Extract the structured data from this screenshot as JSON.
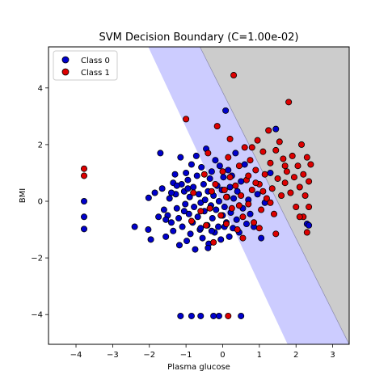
{
  "chart_data": {
    "type": "scatter",
    "title": "SVM Decision Boundary (C=1.00e-02)",
    "xlabel": "Plasma glucose",
    "ylabel": "BMI",
    "xlim": [
      -4.75,
      3.45
    ],
    "ylim": [
      -5.05,
      5.45
    ],
    "x_ticks": [
      -4,
      -3,
      -2,
      -1,
      0,
      1,
      2,
      3
    ],
    "y_ticks": [
      -4,
      -2,
      0,
      2,
      4
    ],
    "x_tick_labels": [
      "−4",
      "−3",
      "−2",
      "−1",
      "0",
      "1",
      "2",
      "3"
    ],
    "y_tick_labels": [
      "−4",
      "−2",
      "0",
      "2",
      "4"
    ],
    "grid": false,
    "legend_position": "top-left",
    "colors": {
      "class0_face": "#0000cc",
      "class1_face": "#dd0000",
      "marker_edge": "#000000",
      "region_class0": "#ccccff",
      "region_class1": "#cccccc",
      "boundary": "#8888aa"
    },
    "decision_regions": {
      "boundary_top_x": -0.62,
      "boundary_bottom_x": 3.45,
      "blue_band_top_x": -2.03,
      "blue_band_bottom_x": 1.77
    },
    "series": [
      {
        "name": "Class 0",
        "points": [
          [
            -3.78,
            0.0
          ],
          [
            -3.78,
            -0.55
          ],
          [
            -3.78,
            -0.98
          ],
          [
            -2.4,
            -0.9
          ],
          [
            -2.03,
            -1.0
          ],
          [
            -1.96,
            -1.35
          ],
          [
            -2.02,
            0.12
          ],
          [
            -1.85,
            0.3
          ],
          [
            -1.75,
            -0.55
          ],
          [
            -1.7,
            1.7
          ],
          [
            -1.65,
            0.45
          ],
          [
            -1.6,
            -0.3
          ],
          [
            -1.55,
            -1.25
          ],
          [
            -1.5,
            -0.5
          ],
          [
            -1.45,
            0.1
          ],
          [
            -1.4,
            -0.75
          ],
          [
            -1.35,
            0.65
          ],
          [
            -1.35,
            -1.05
          ],
          [
            -1.3,
            0.95
          ],
          [
            -1.28,
            0.25
          ],
          [
            -1.25,
            -0.25
          ],
          [
            -1.2,
            -0.6
          ],
          [
            -1.18,
            -1.55
          ],
          [
            -1.15,
            1.55
          ],
          [
            -1.12,
            0.6
          ],
          [
            -1.1,
            -0.9
          ],
          [
            -1.05,
            0.35
          ],
          [
            -1.02,
            -0.1
          ],
          [
            -1.0,
            1.0
          ],
          [
            -0.98,
            -1.4
          ],
          [
            -0.95,
            0.75
          ],
          [
            -0.92,
            -0.45
          ],
          [
            -0.9,
            0.15
          ],
          [
            -0.88,
            -1.15
          ],
          [
            -0.85,
            1.3
          ],
          [
            -0.82,
            -0.75
          ],
          [
            -0.8,
            0.5
          ],
          [
            -0.78,
            -0.2
          ],
          [
            -0.75,
            -1.7
          ],
          [
            -0.72,
            1.6
          ],
          [
            -0.7,
            0.9
          ],
          [
            -0.68,
            -0.55
          ],
          [
            -0.65,
            0.25
          ],
          [
            -0.62,
            -1.0
          ],
          [
            -0.6,
            -0.05
          ],
          [
            -0.58,
            1.2
          ],
          [
            -0.55,
            -1.3
          ],
          [
            -0.52,
            0.6
          ],
          [
            -0.5,
            -0.35
          ],
          [
            -0.48,
            0.05
          ],
          [
            -0.45,
            1.85
          ],
          [
            -0.42,
            -0.85
          ],
          [
            -0.4,
            0.35
          ],
          [
            -0.38,
            -1.5
          ],
          [
            -0.35,
            0.8
          ],
          [
            -0.32,
            -0.15
          ],
          [
            -0.3,
            1.05
          ],
          [
            -0.28,
            -0.6
          ],
          [
            -0.25,
            0.2
          ],
          [
            -0.22,
            -1.1
          ],
          [
            -0.2,
            1.45
          ],
          [
            -0.18,
            -0.3
          ],
          [
            -0.15,
            0.55
          ],
          [
            -0.12,
            -0.9
          ],
          [
            -0.1,
            0.0
          ],
          [
            -0.08,
            1.25
          ],
          [
            -0.05,
            -1.35
          ],
          [
            -0.02,
            0.4
          ],
          [
            0.0,
            -0.5
          ],
          [
            0.02,
            0.85
          ],
          [
            0.05,
            -0.2
          ],
          [
            0.08,
            3.2
          ],
          [
            0.1,
            -0.75
          ],
          [
            0.12,
            0.15
          ],
          [
            0.15,
            1.1
          ],
          [
            0.18,
            -1.25
          ],
          [
            0.2,
            0.5
          ],
          [
            0.22,
            -0.4
          ],
          [
            0.25,
            0.9
          ],
          [
            0.28,
            -0.95
          ],
          [
            0.3,
            0.1
          ],
          [
            0.35,
            1.7
          ],
          [
            0.38,
            -0.65
          ],
          [
            0.4,
            0.35
          ],
          [
            0.45,
            -1.1
          ],
          [
            0.5,
            0.7
          ],
          [
            0.55,
            -0.25
          ],
          [
            0.6,
            1.3
          ],
          [
            0.65,
            -0.8
          ],
          [
            0.7,
            0.05
          ],
          [
            0.75,
            -0.45
          ],
          [
            0.85,
            -0.9
          ],
          [
            0.95,
            0.25
          ],
          [
            1.05,
            -1.3
          ],
          [
            1.15,
            -0.05
          ],
          [
            1.3,
            1.0
          ],
          [
            1.45,
            2.55
          ],
          [
            2.3,
            -0.8
          ],
          [
            2.35,
            -0.85
          ],
          [
            -0.95,
            0.45
          ],
          [
            -1.25,
            0.55
          ],
          [
            -1.05,
            -0.35
          ],
          [
            -0.3,
            -1.05
          ],
          [
            0.05,
            -0.9
          ],
          [
            -0.6,
            -0.95
          ],
          [
            -1.55,
            -0.65
          ],
          [
            -1.4,
            0.3
          ],
          [
            -0.4,
            -1.65
          ],
          [
            -1.15,
            -4.05
          ],
          [
            -0.85,
            -4.05
          ],
          [
            -0.6,
            -4.05
          ],
          [
            -0.25,
            -4.05
          ],
          [
            -0.1,
            -4.05
          ],
          [
            0.5,
            -4.05
          ]
        ]
      },
      {
        "name": "Class 1",
        "points": [
          [
            -3.78,
            1.15
          ],
          [
            -3.78,
            0.9
          ],
          [
            -1.0,
            2.9
          ],
          [
            -0.4,
            1.7
          ],
          [
            -0.2,
            0.6
          ],
          [
            -0.15,
            2.65
          ],
          [
            -0.05,
            -0.5
          ],
          [
            0.05,
            0.4
          ],
          [
            0.1,
            -0.8
          ],
          [
            0.15,
            1.55
          ],
          [
            0.2,
            0.85
          ],
          [
            0.25,
            -0.25
          ],
          [
            0.3,
            4.45
          ],
          [
            0.35,
            0.55
          ],
          [
            0.4,
            -1.0
          ],
          [
            0.45,
            1.25
          ],
          [
            0.5,
            0.2
          ],
          [
            0.55,
            -0.55
          ],
          [
            0.6,
            1.9
          ],
          [
            0.65,
            0.75
          ],
          [
            0.7,
            -0.1
          ],
          [
            0.75,
            1.45
          ],
          [
            0.8,
            0.4
          ],
          [
            0.85,
            -0.75
          ],
          [
            0.9,
            1.1
          ],
          [
            0.95,
            2.15
          ],
          [
            1.0,
            0.6
          ],
          [
            1.05,
            -0.3
          ],
          [
            1.1,
            1.75
          ],
          [
            1.15,
            0.95
          ],
          [
            1.2,
            0.1
          ],
          [
            1.25,
            2.5
          ],
          [
            1.3,
            1.35
          ],
          [
            1.35,
            0.45
          ],
          [
            1.4,
            -0.45
          ],
          [
            1.45,
            1.8
          ],
          [
            1.5,
            0.8
          ],
          [
            1.55,
            2.1
          ],
          [
            1.6,
            0.2
          ],
          [
            1.65,
            1.5
          ],
          [
            1.7,
            0.65
          ],
          [
            1.75,
            1.05
          ],
          [
            1.8,
            3.5
          ],
          [
            1.85,
            0.3
          ],
          [
            1.9,
            1.6
          ],
          [
            1.95,
            0.85
          ],
          [
            2.0,
            -0.2
          ],
          [
            2.05,
            1.25
          ],
          [
            2.1,
            0.5
          ],
          [
            2.15,
            2.0
          ],
          [
            2.2,
            0.95
          ],
          [
            2.25,
            0.2
          ],
          [
            2.3,
            1.55
          ],
          [
            2.35,
            0.7
          ],
          [
            2.4,
            1.3
          ],
          [
            2.3,
            -1.1
          ],
          [
            2.35,
            -0.2
          ],
          [
            2.2,
            -0.55
          ],
          [
            1.45,
            -1.15
          ],
          [
            1.0,
            -0.95
          ],
          [
            0.55,
            -1.3
          ],
          [
            -0.25,
            -1.45
          ],
          [
            -0.45,
            -0.85
          ],
          [
            -0.6,
            -0.35
          ],
          [
            -0.8,
            0.3
          ],
          [
            -0.85,
            -0.7
          ],
          [
            -0.5,
            0.95
          ],
          [
            -0.3,
            0.35
          ],
          [
            0.0,
            1.05
          ],
          [
            0.1,
            0.15
          ],
          [
            -0.35,
            -0.25
          ],
          [
            0.8,
            1.9
          ],
          [
            0.2,
            2.2
          ],
          [
            0.7,
            0.9
          ],
          [
            1.1,
            0.35
          ],
          [
            1.3,
            -0.05
          ],
          [
            0.45,
            -0.15
          ],
          [
            0.9,
            0.65
          ],
          [
            1.7,
            1.25
          ],
          [
            2.1,
            -0.55
          ],
          [
            0.15,
            -4.05
          ]
        ]
      }
    ]
  }
}
